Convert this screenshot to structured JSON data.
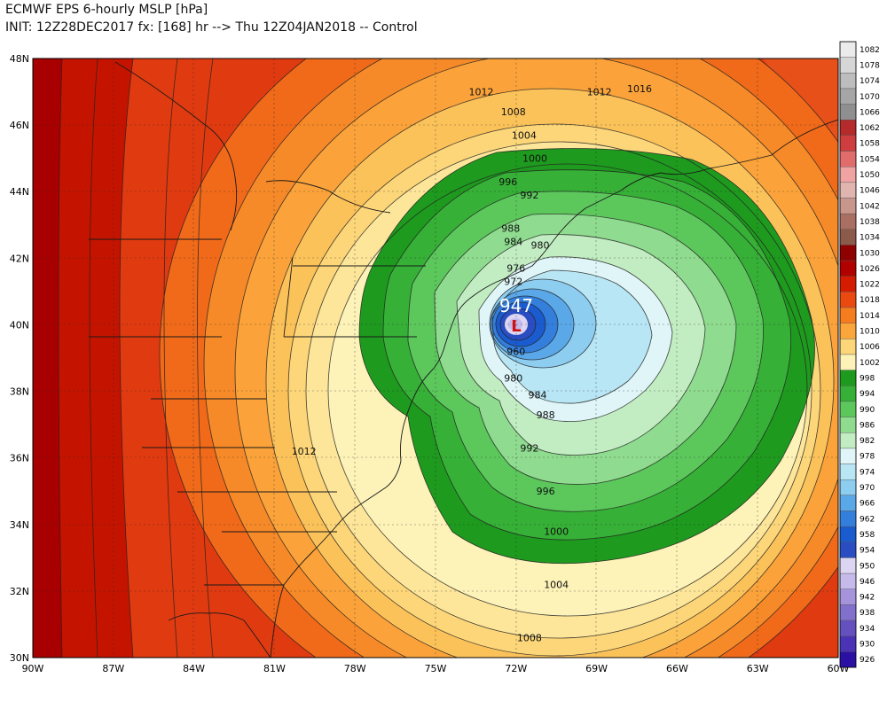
{
  "header": {
    "line1": "ECMWF EPS 6-hourly MSLP [hPa]",
    "line2": "INIT: 12Z28DEC2017 fx: [168] hr --> Thu 12Z04JAN2018 -- Control"
  },
  "map": {
    "lat_labels": [
      "48N",
      "46N",
      "44N",
      "42N",
      "40N",
      "38N",
      "36N",
      "34N",
      "32N",
      "30N"
    ],
    "lon_labels": [
      "90W",
      "87W",
      "84W",
      "81W",
      "78W",
      "75W",
      "72W",
      "69W",
      "66W",
      "63W",
      "60W"
    ],
    "low_center": {
      "value": "947",
      "symbol": "L",
      "lon": -72.1,
      "lat": 40.1
    },
    "contour_labels": [
      {
        "text": "1012",
        "lon": -73.3,
        "lat": 47.0
      },
      {
        "text": "1008",
        "lon": -72.1,
        "lat": 46.4
      },
      {
        "text": "1004",
        "lon": -71.7,
        "lat": 45.7
      },
      {
        "text": "1000",
        "lon": -71.3,
        "lat": 45.0
      },
      {
        "text": "996",
        "lon": -72.3,
        "lat": 44.3
      },
      {
        "text": "992",
        "lon": -71.5,
        "lat": 43.9
      },
      {
        "text": "988",
        "lon": -72.2,
        "lat": 42.9
      },
      {
        "text": "984",
        "lon": -72.1,
        "lat": 42.5
      },
      {
        "text": "980",
        "lon": -71.1,
        "lat": 42.4
      },
      {
        "text": "976",
        "lon": -72.0,
        "lat": 41.7
      },
      {
        "text": "972",
        "lon": -72.1,
        "lat": 41.3
      },
      {
        "text": "960",
        "lon": -72.0,
        "lat": 39.2
      },
      {
        "text": "980",
        "lon": -72.1,
        "lat": 38.4
      },
      {
        "text": "984",
        "lon": -71.2,
        "lat": 37.9
      },
      {
        "text": "988",
        "lon": -70.9,
        "lat": 37.3
      },
      {
        "text": "992",
        "lon": -71.5,
        "lat": 36.3
      },
      {
        "text": "996",
        "lon": -70.9,
        "lat": 35.0
      },
      {
        "text": "1000",
        "lon": -70.5,
        "lat": 33.8
      },
      {
        "text": "1004",
        "lon": -70.5,
        "lat": 32.2
      },
      {
        "text": "1008",
        "lon": -71.5,
        "lat": 30.6
      },
      {
        "text": "1012",
        "lon": -79.9,
        "lat": 36.2
      },
      {
        "text": "1012",
        "lon": -68.9,
        "lat": 47.0
      },
      {
        "text": "1016",
        "lon": -67.4,
        "lat": 47.1
      }
    ]
  },
  "colorbar": {
    "levels": [
      "1082",
      "1078",
      "1074",
      "1070",
      "1066",
      "1062",
      "1058",
      "1054",
      "1050",
      "1046",
      "1042",
      "1038",
      "1034",
      "1030",
      "1026",
      "1022",
      "1018",
      "1014",
      "1010",
      "1006",
      "1002",
      "998",
      "994",
      "990",
      "986",
      "982",
      "978",
      "974",
      "970",
      "966",
      "962",
      "958",
      "954",
      "950",
      "946",
      "942",
      "938",
      "934",
      "930",
      "926"
    ],
    "colors": [
      "#ebebeb",
      "#d6d6d6",
      "#bdbdbd",
      "#a6a6a6",
      "#8f8f8f",
      "#b52a2a",
      "#cf3e3e",
      "#e06c6c",
      "#f0a3a3",
      "#e0b5b0",
      "#c9968e",
      "#a86f62",
      "#8b5a4a",
      "#8f0000",
      "#b00000",
      "#d41c00",
      "#ea4a10",
      "#f57d1f",
      "#fba63a",
      "#fcd679",
      "#fdf2b8",
      "#1e9a1e",
      "#36b036",
      "#5cc85c",
      "#8fdb8f",
      "#c2edc2",
      "#dff5f7",
      "#b9e6f5",
      "#8ccdf0",
      "#5aa8e8",
      "#347fdc",
      "#1a5ccf",
      "#2a4ec2",
      "#ddd6f2",
      "#c5baea",
      "#a594dc",
      "#8270cd",
      "#6550c0",
      "#4a33b4",
      "#2a10a3"
    ]
  }
}
